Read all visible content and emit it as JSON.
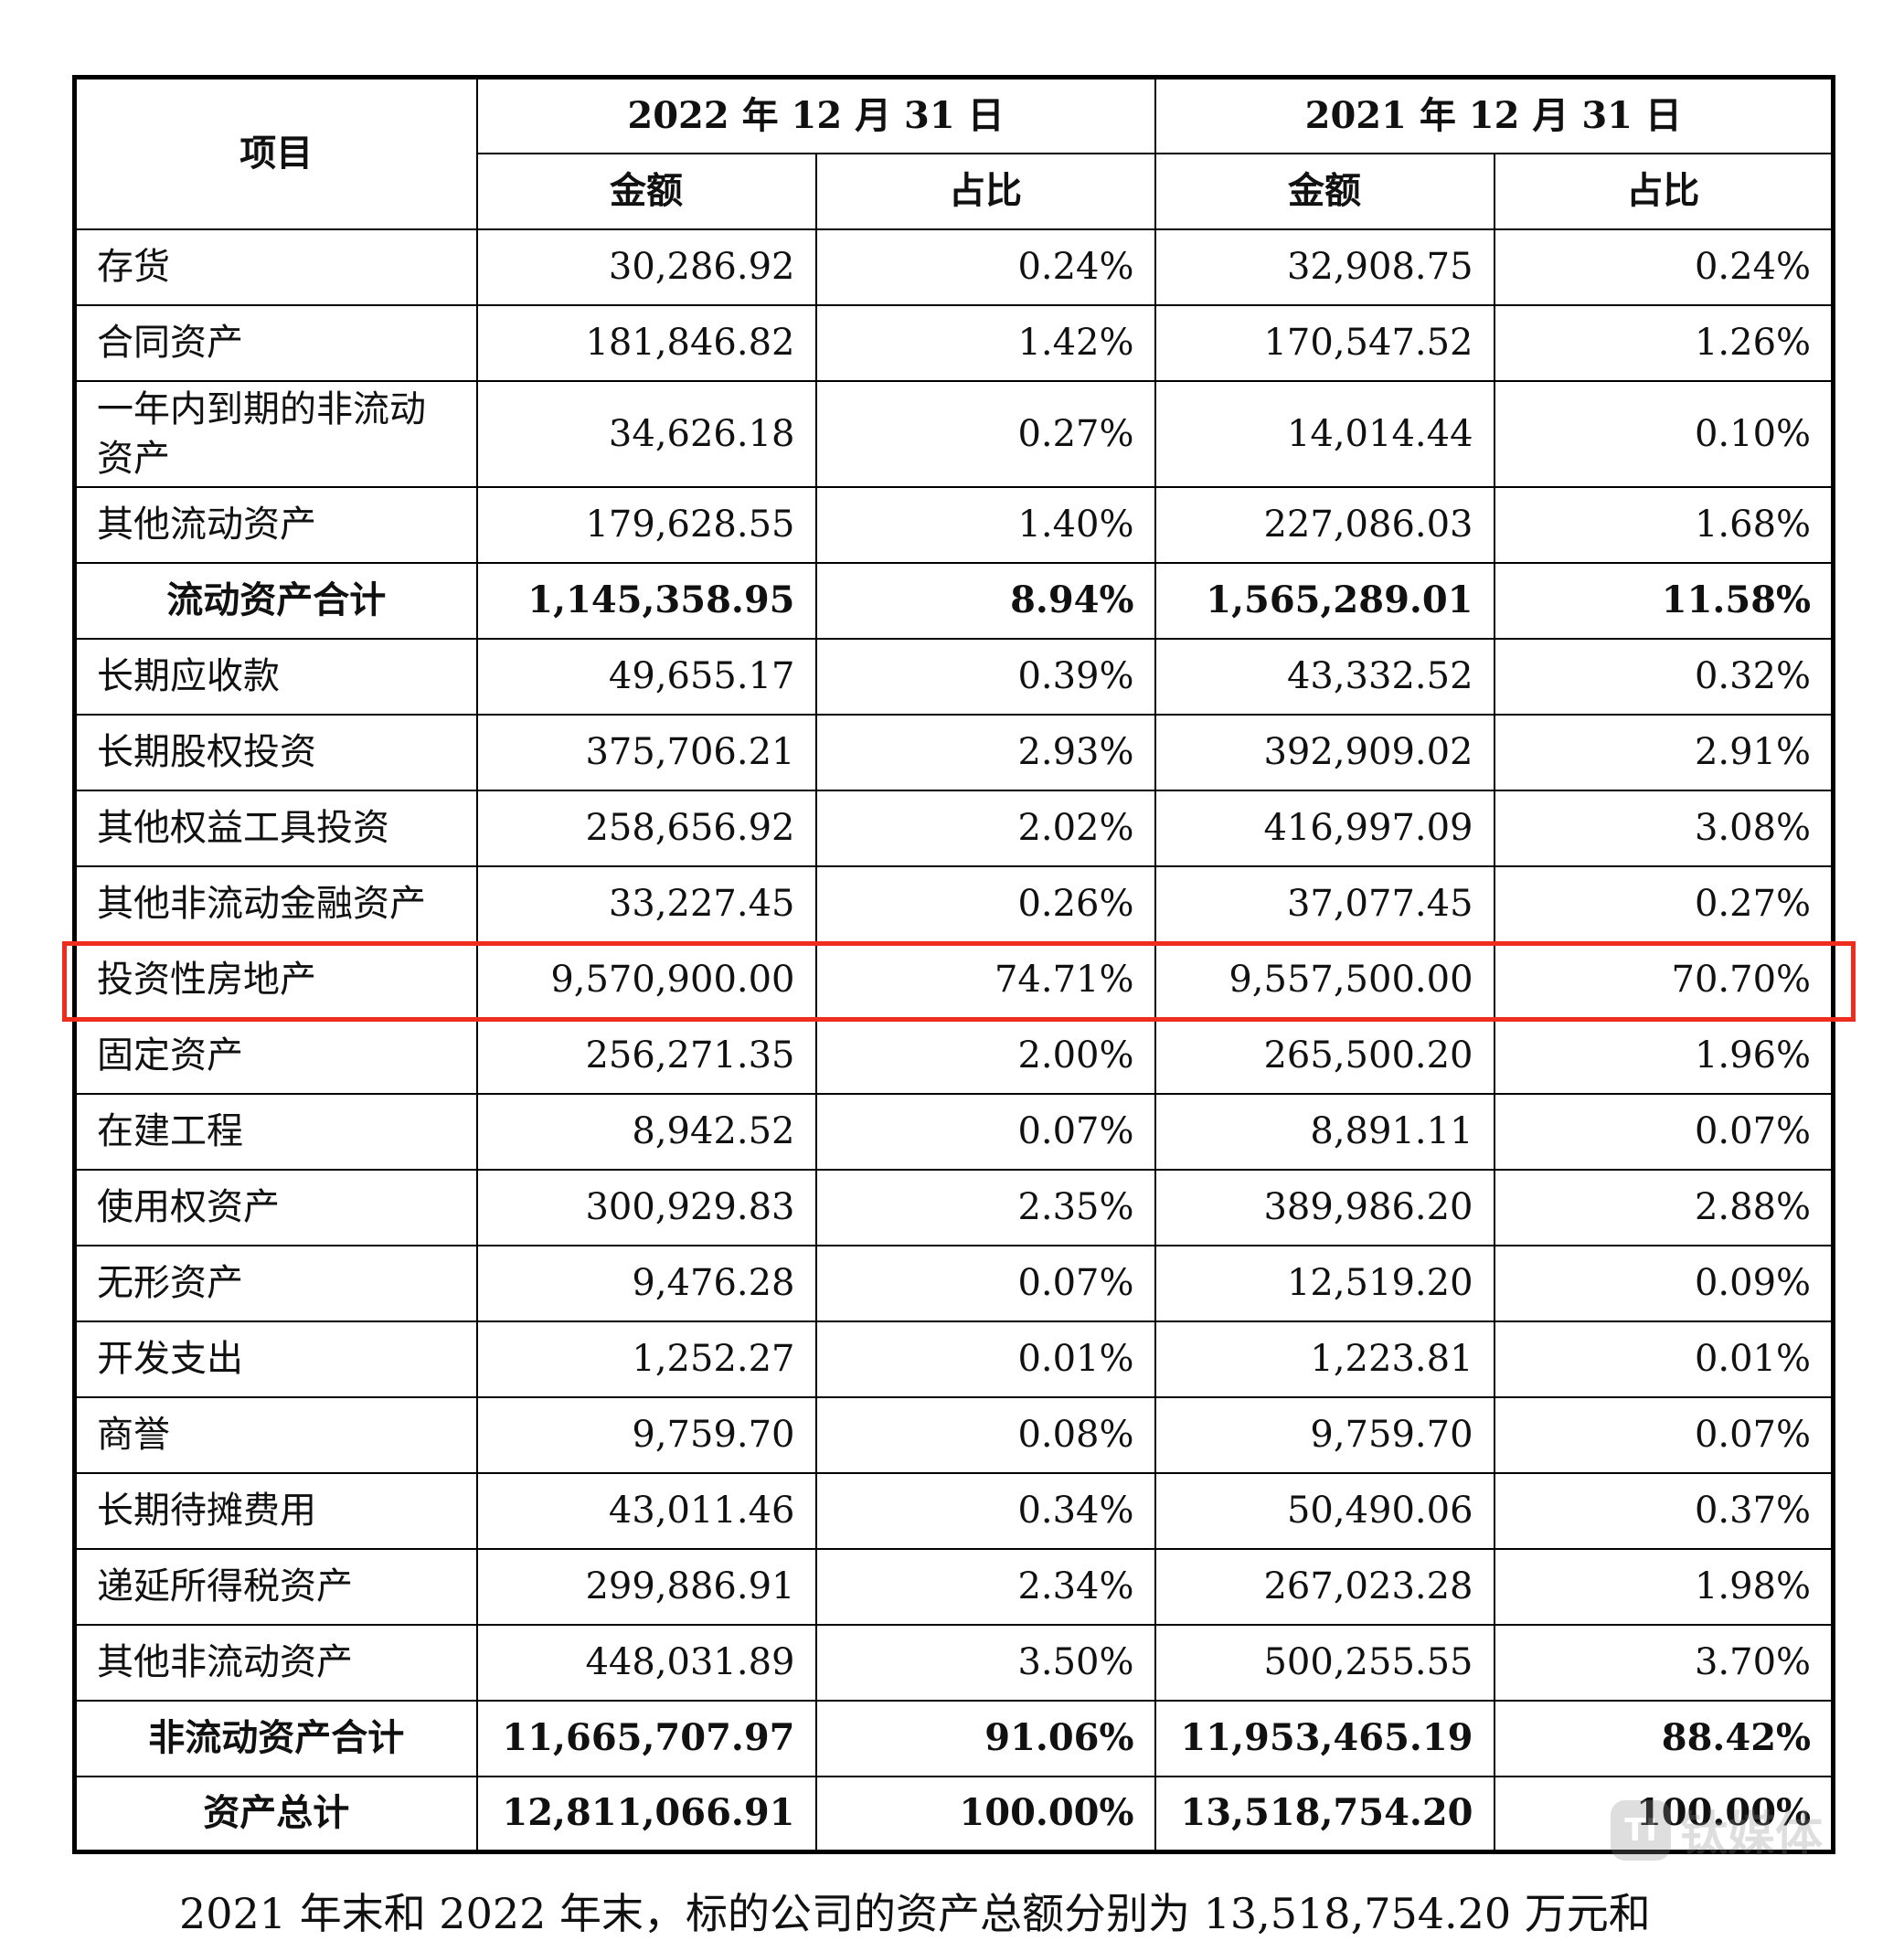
{
  "header": {
    "item": "项目",
    "period_2022": "2022 年 12 月 31 日",
    "period_2021": "2021 年 12 月 31 日",
    "amount": "金额",
    "ratio": "占比"
  },
  "rows": [
    {
      "label": "存货",
      "a2022": "30,286.92",
      "r2022": "0.24%",
      "a2021": "32,908.75",
      "r2021": "0.24%"
    },
    {
      "label": "合同资产",
      "a2022": "181,846.82",
      "r2022": "1.42%",
      "a2021": "170,547.52",
      "r2021": "1.26%"
    },
    {
      "label": "一年内到期的非流动资产",
      "a2022": "34,626.18",
      "r2022": "0.27%",
      "a2021": "14,014.44",
      "r2021": "0.10%"
    },
    {
      "label": "其他流动资产",
      "a2022": "179,628.55",
      "r2022": "1.40%",
      "a2021": "227,086.03",
      "r2021": "1.68%"
    },
    {
      "label": "流动资产合计",
      "a2022": "1,145,358.95",
      "r2022": "8.94%",
      "a2021": "1,565,289.01",
      "r2021": "11.58%"
    },
    {
      "label": "长期应收款",
      "a2022": "49,655.17",
      "r2022": "0.39%",
      "a2021": "43,332.52",
      "r2021": "0.32%"
    },
    {
      "label": "长期股权投资",
      "a2022": "375,706.21",
      "r2022": "2.93%",
      "a2021": "392,909.02",
      "r2021": "2.91%"
    },
    {
      "label": "其他权益工具投资",
      "a2022": "258,656.92",
      "r2022": "2.02%",
      "a2021": "416,997.09",
      "r2021": "3.08%"
    },
    {
      "label": "其他非流动金融资产",
      "a2022": "33,227.45",
      "r2022": "0.26%",
      "a2021": "37,077.45",
      "r2021": "0.27%"
    },
    {
      "label": "投资性房地产",
      "a2022": "9,570,900.00",
      "r2022": "74.71%",
      "a2021": "9,557,500.00",
      "r2021": "70.70%"
    },
    {
      "label": "固定资产",
      "a2022": "256,271.35",
      "r2022": "2.00%",
      "a2021": "265,500.20",
      "r2021": "1.96%"
    },
    {
      "label": "在建工程",
      "a2022": "8,942.52",
      "r2022": "0.07%",
      "a2021": "8,891.11",
      "r2021": "0.07%"
    },
    {
      "label": "使用权资产",
      "a2022": "300,929.83",
      "r2022": "2.35%",
      "a2021": "389,986.20",
      "r2021": "2.88%"
    },
    {
      "label": "无形资产",
      "a2022": "9,476.28",
      "r2022": "0.07%",
      "a2021": "12,519.20",
      "r2021": "0.09%"
    },
    {
      "label": "开发支出",
      "a2022": "1,252.27",
      "r2022": "0.01%",
      "a2021": "1,223.81",
      "r2021": "0.01%"
    },
    {
      "label": "商誉",
      "a2022": "9,759.70",
      "r2022": "0.08%",
      "a2021": "9,759.70",
      "r2021": "0.07%"
    },
    {
      "label": "长期待摊费用",
      "a2022": "43,011.46",
      "r2022": "0.34%",
      "a2021": "50,490.06",
      "r2021": "0.37%"
    },
    {
      "label": "递延所得税资产",
      "a2022": "299,886.91",
      "r2022": "2.34%",
      "a2021": "267,023.28",
      "r2021": "1.98%"
    },
    {
      "label": "其他非流动资产",
      "a2022": "448,031.89",
      "r2022": "3.50%",
      "a2021": "500,255.55",
      "r2021": "3.70%"
    },
    {
      "label": "非流动资产合计",
      "a2022": "11,665,707.97",
      "r2022": "91.06%",
      "a2021": "11,953,465.19",
      "r2021": "88.42%"
    },
    {
      "label": "资产总计",
      "a2022": "12,811,066.91",
      "r2022": "100.00%",
      "a2021": "13,518,754.20",
      "r2021": "100.00%"
    }
  ],
  "watermark": {
    "mark": "TI",
    "text": "钛媒体"
  },
  "footer_text": "2021 年末和 2022 年末，标的公司的资产总额分别为 13,518,754.20 万元和",
  "highlight_color": "#ee2d1e"
}
